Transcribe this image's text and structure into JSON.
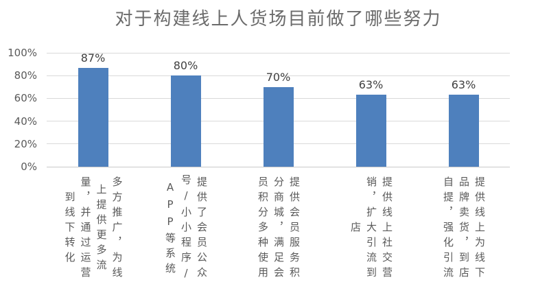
{
  "chart_data": {
    "type": "bar",
    "title": "对于构建线上人货场目前做了哪些努力",
    "categories": [
      "多方推广，为线上提供更多流量，并通过运营到线下转化",
      "提供了会员公众号/小小程序/APP等系统",
      "提供会员服务积分商城，满足会员积分多种使用",
      "提供线上社交营销，扩大引流到店",
      "提供线上为线下品牌卖货，到店自提，强化引流"
    ],
    "values": [
      87,
      80,
      70,
      63,
      63
    ],
    "value_labels": [
      "87%",
      "80%",
      "70%",
      "63%",
      "63%"
    ],
    "xlabel": "",
    "ylabel": "",
    "ylim": [
      0,
      100
    ],
    "ytick_step": 20,
    "ytick_labels": [
      "0%",
      "20%",
      "40%",
      "60%",
      "80%",
      "100%"
    ],
    "grid": true,
    "legend": false,
    "colors": {
      "bar": "#4E80BD",
      "gridline": "#D9D9D9",
      "axis_line": "#C9C9C9",
      "title_text": "#6B6B6B",
      "axis_text": "#595959",
      "data_label_text": "#404040"
    }
  }
}
